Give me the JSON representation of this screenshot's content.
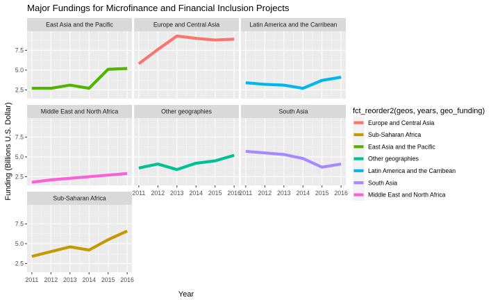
{
  "chart_data": {
    "type": "line",
    "title": "Major Fundings for Microfinance and Financial Inclusion Projects",
    "xlabel": "Year",
    "ylabel": "Funding (Billions U.S. Dollar)",
    "x": [
      2011,
      2012,
      2013,
      2014,
      2015,
      2016
    ],
    "ylim": [
      1.4,
      9.9
    ],
    "yticks": [
      2.5,
      5.0,
      7.5
    ],
    "ytick_labels": [
      "2.5",
      "5.0",
      "7.5"
    ],
    "grid": true,
    "legend": {
      "title": "fct_reorder2(geos, years, geo_funding)",
      "position": "right",
      "entries": [
        {
          "label": "Europe and Central Asia",
          "color": "#F8766D"
        },
        {
          "label": "Sub-Saharan Africa",
          "color": "#C49A00"
        },
        {
          "label": "East Asia and the Pacific",
          "color": "#53B400"
        },
        {
          "label": "Other geographies",
          "color": "#00C094"
        },
        {
          "label": "Latin America and the Carribean",
          "color": "#00B6EB"
        },
        {
          "label": "South Asia",
          "color": "#A58AFF"
        },
        {
          "label": "Middle East and North Africa",
          "color": "#FB61D7"
        }
      ]
    },
    "panels": [
      {
        "name": "East Asia and the Pacific",
        "color": "#53B400",
        "values": [
          2.7,
          2.7,
          3.1,
          2.7,
          5.1,
          5.2
        ]
      },
      {
        "name": "Europe and Central Asia",
        "color": "#F8766D",
        "values": [
          5.8,
          7.6,
          9.3,
          9.0,
          8.8,
          8.9
        ]
      },
      {
        "name": "Latin America and the Carribean",
        "color": "#00B6EB",
        "values": [
          3.4,
          3.2,
          3.1,
          2.7,
          3.7,
          4.1
        ]
      },
      {
        "name": "Middle East and North Africa",
        "color": "#FB61D7",
        "values": [
          1.8,
          2.1,
          2.3,
          2.5,
          2.7,
          2.9
        ]
      },
      {
        "name": "Other geographies",
        "color": "#00C094",
        "values": [
          3.6,
          4.1,
          3.4,
          4.2,
          4.5,
          5.2
        ]
      },
      {
        "name": "South Asia",
        "color": "#A58AFF",
        "values": [
          5.7,
          5.5,
          5.3,
          4.8,
          3.7,
          4.1
        ]
      },
      {
        "name": "Sub-Saharan Africa",
        "color": "#C49A00",
        "values": [
          3.4,
          4.0,
          4.6,
          4.2,
          5.5,
          6.6
        ]
      }
    ]
  }
}
